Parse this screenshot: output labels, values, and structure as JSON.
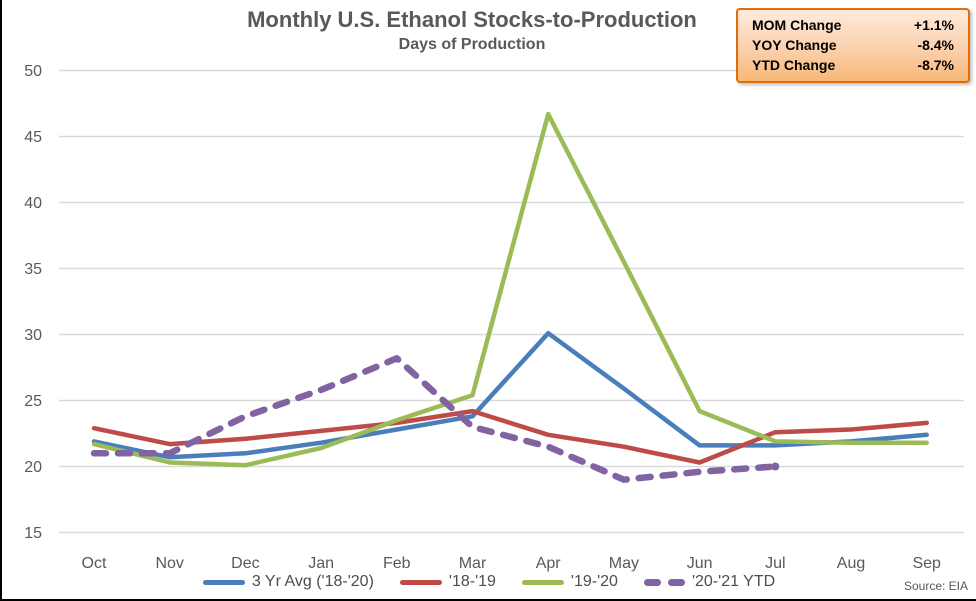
{
  "title": "Monthly U.S. Ethanol Stocks-to-Production",
  "subtitle": "Days of Production",
  "source": "Source: EIA",
  "stats_box": {
    "rows": [
      {
        "label": "MOM Change",
        "value": "+1.1%"
      },
      {
        "label": "YOY Change",
        "value": "-8.4%"
      },
      {
        "label": "YTD Change",
        "value": "-8.7%"
      }
    ],
    "border_color": "#E26B0A",
    "bg_top": "#FDECDE",
    "bg_bottom": "#F8B878"
  },
  "chart_data": {
    "type": "line",
    "title": "Monthly U.S. Ethanol Stocks-to-Production",
    "subtitle": "Days of Production",
    "xlabel": "",
    "ylabel": "Days of Production",
    "ylim": [
      15,
      50
    ],
    "yticks": [
      15,
      20,
      25,
      30,
      35,
      40,
      45,
      50
    ],
    "grid": "horizontal",
    "grid_color": "#D9D9D9",
    "legend_position": "bottom",
    "categories": [
      "Oct",
      "Nov",
      "Dec",
      "Jan",
      "Feb",
      "Mar",
      "Apr",
      "May",
      "Jun",
      "Jul",
      "Aug",
      "Sep"
    ],
    "series": [
      {
        "name": "3 Yr Avg ('18-'20)",
        "color": "#4A7EBB",
        "style": "solid",
        "values": [
          21.9,
          20.7,
          21.0,
          21.8,
          22.8,
          23.8,
          30.1,
          25.9,
          21.6,
          21.6,
          21.9,
          22.4
        ]
      },
      {
        "name": "'18-'19",
        "color": "#BE4B48",
        "style": "solid",
        "values": [
          22.9,
          21.7,
          22.1,
          22.7,
          23.3,
          24.2,
          22.4,
          21.5,
          20.3,
          22.6,
          22.8,
          23.3
        ]
      },
      {
        "name": "'19-'20",
        "color": "#9BBB57",
        "style": "solid",
        "values": [
          21.7,
          20.3,
          20.1,
          21.4,
          23.5,
          25.4,
          46.7,
          35.5,
          24.2,
          21.9,
          21.8,
          21.8
        ]
      },
      {
        "name": "'20-'21 YTD",
        "color": "#8063A0",
        "style": "dashed",
        "values": [
          21.0,
          21.0,
          23.8,
          25.8,
          28.2,
          23.0,
          21.5,
          19.0,
          19.6,
          20.0,
          null,
          null
        ]
      }
    ]
  }
}
